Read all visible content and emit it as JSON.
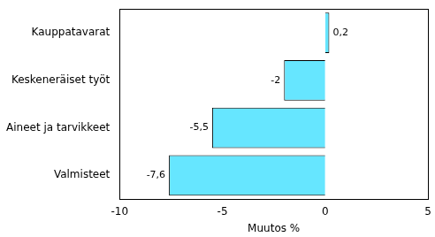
{
  "chart_data": {
    "type": "bar",
    "orientation": "horizontal",
    "categories": [
      "Kauppatavarat",
      "Keskeneräiset työt",
      "Aineet ja tarvikkeet",
      "Valmisteet"
    ],
    "values": [
      0.2,
      -2,
      -5.5,
      -7.6
    ],
    "value_labels": [
      "0,2",
      "-2",
      "-5,5",
      "-7,6"
    ],
    "data_labels": true,
    "color": "#66e6ff",
    "x_label": "Muutos %",
    "xlim": [
      -10,
      5
    ],
    "xticks": [
      -10,
      -5,
      0,
      5
    ],
    "grid": false
  }
}
